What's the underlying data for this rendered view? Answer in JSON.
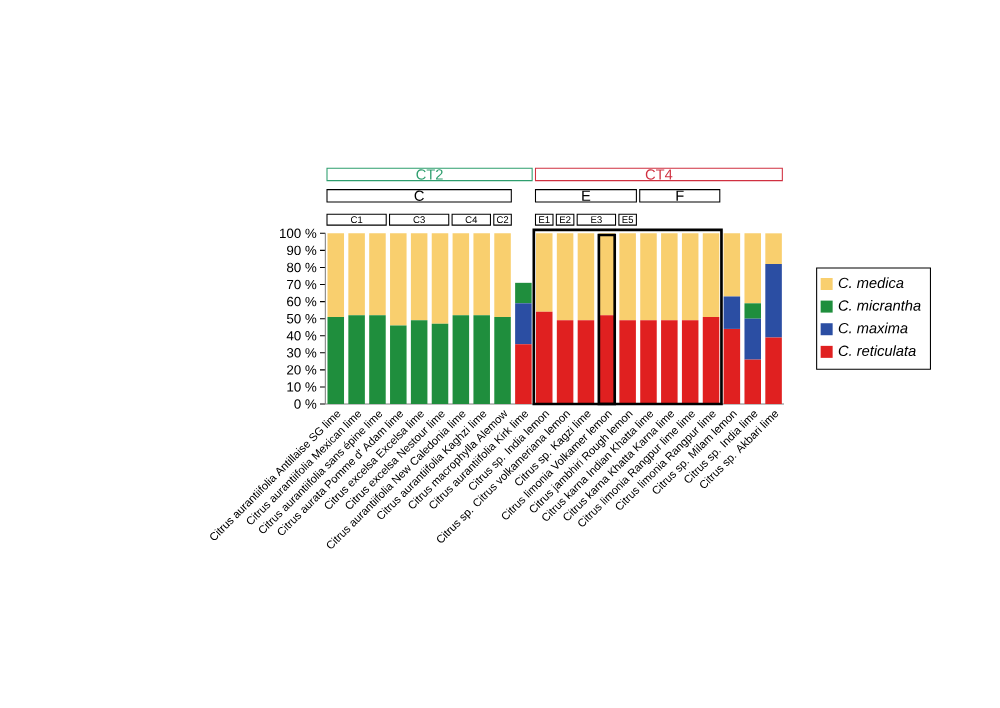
{
  "chart_data": {
    "type": "bar",
    "stacked": true,
    "categories": [
      "Citrus aurantiifolia Antillaise SG lime",
      "Citrus aurantiifolia Mexican lime",
      "Citrus aurantiifolia sans épine lime",
      "Citrus aurata Pomme d' Adam lime",
      "Citrus excelsa Excelsa lime",
      "Citrus excelsa Nestour lime",
      "Citrus aurantiifolia New Caledonia lime",
      "Citrus aurantiifolia Kaghzi lime",
      "Citrus macrophylla Alemow",
      "Citrus aurantiifolia Kirk lime",
      "Citrus sp. India lemon",
      "Citrus sp. Citrus volkameriana lemon",
      "Citrus sp. Kagzi lime",
      "Citrus limonia Volkamer lemon",
      "Citrus jambhiri Rough lemon",
      "Citrus karna Indian Khatta lime",
      "Citrus karna Khatta Karna lime",
      "Citrus limonia Rangpur lime lime",
      "Citrus limonia Rangpur lime",
      "Citrus sp. Milam lemon",
      "Citrus sp. India lime",
      "Citrus sp. Akbari lime"
    ],
    "series": [
      {
        "name": "C. reticulata",
        "color": "#e02020",
        "values": [
          0,
          0,
          0,
          0,
          0,
          0,
          0,
          0,
          0,
          35,
          54,
          49,
          49,
          52,
          49,
          49,
          49,
          49,
          51,
          44,
          26,
          39
        ]
      },
      {
        "name": "C. maxima",
        "color": "#2b4ea3",
        "values": [
          0,
          0,
          0,
          0,
          0,
          0,
          0,
          0,
          0,
          24,
          0,
          0,
          0,
          0,
          0,
          0,
          0,
          0,
          0,
          19,
          24,
          43
        ]
      },
      {
        "name": "C. micrantha",
        "color": "#1f8e3d",
        "values": [
          51,
          52,
          52,
          46,
          49,
          47,
          52,
          52,
          51,
          12,
          0,
          0,
          0,
          0,
          0,
          0,
          0,
          0,
          0,
          0,
          9,
          0
        ]
      },
      {
        "name": "C. medica",
        "color": "#f9cf6e",
        "values": [
          49,
          48,
          48,
          54,
          51,
          53,
          48,
          48,
          49,
          0,
          46,
          51,
          51,
          48,
          51,
          51,
          51,
          51,
          49,
          37,
          41,
          18
        ]
      }
    ],
    "ylim": [
      0,
      100
    ],
    "yticks": [
      {
        "value": 0,
        "label": "0 %"
      },
      {
        "value": 10,
        "label": "10 %"
      },
      {
        "value": 20,
        "label": "20 %"
      },
      {
        "value": 30,
        "label": "30 %"
      },
      {
        "value": 40,
        "label": "40 %"
      },
      {
        "value": 50,
        "label": "50 %"
      },
      {
        "value": 60,
        "label": "60 %"
      },
      {
        "value": 70,
        "label": "70 %"
      },
      {
        "value": 80,
        "label": "80 %"
      },
      {
        "value": 90,
        "label": "90 %"
      },
      {
        "value": 100,
        "label": "100 %"
      }
    ],
    "annotations": [
      "CT2",
      "CT4",
      "C",
      "E",
      "F",
      "C1",
      "C3",
      "C4",
      "C2",
      "E1",
      "E2",
      "E3",
      "E5"
    ],
    "legend": "right"
  }
}
